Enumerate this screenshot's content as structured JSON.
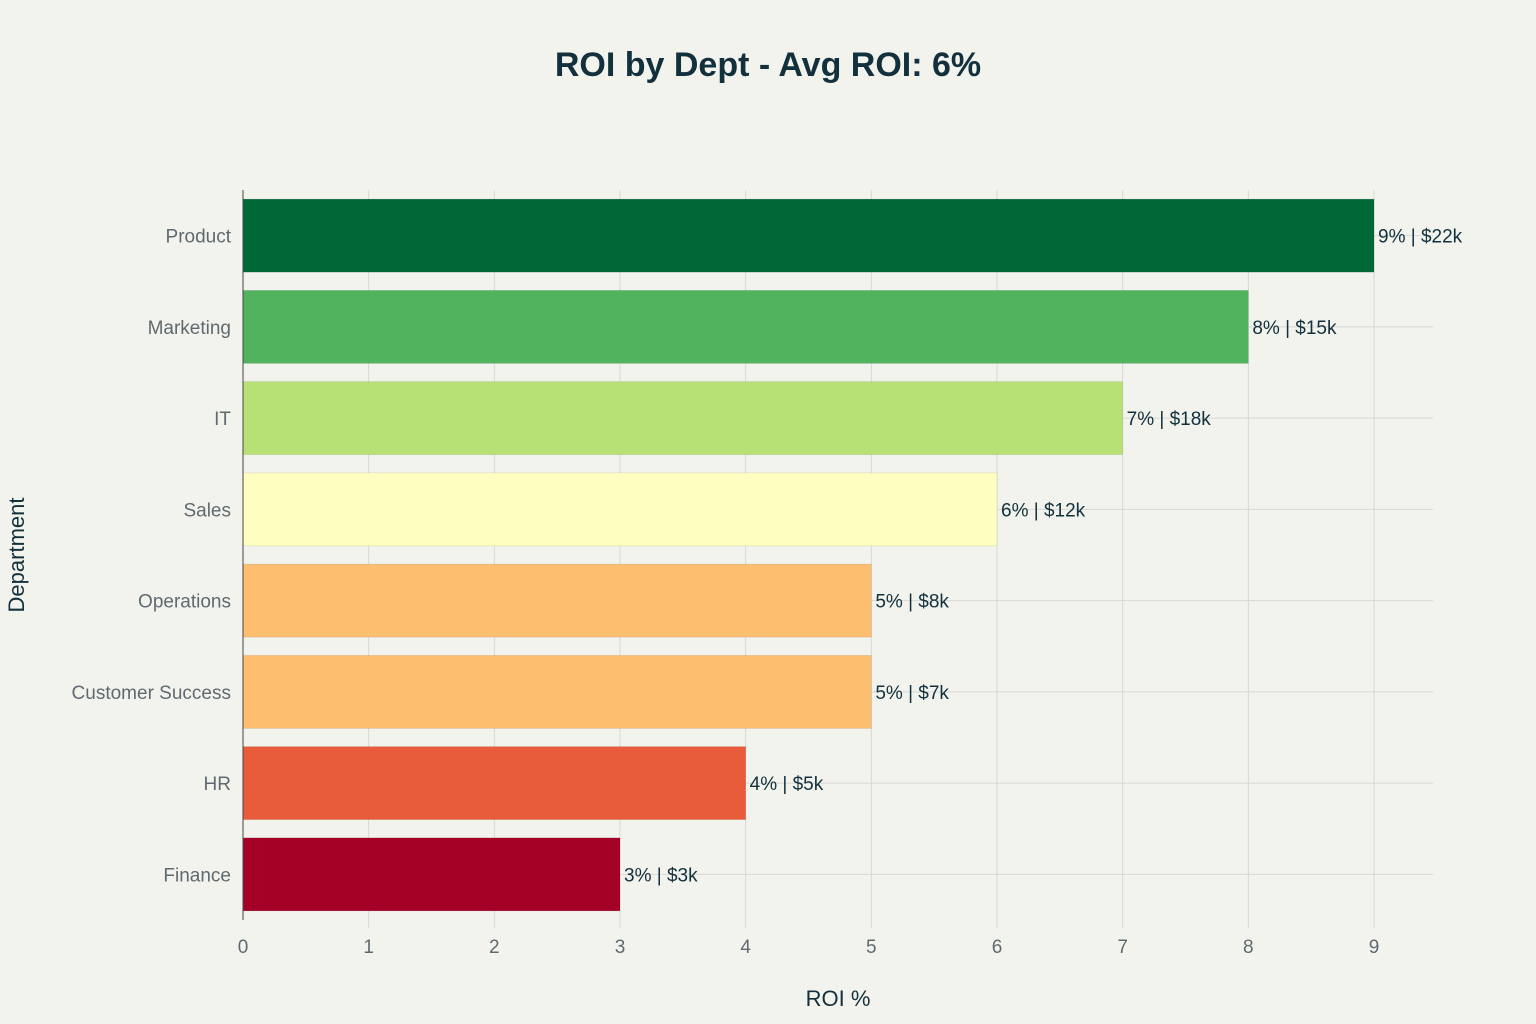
{
  "chart_data": {
    "type": "bar",
    "orientation": "horizontal",
    "title": "ROI by Dept - Avg ROI: 6%",
    "xlabel": "ROI %",
    "ylabel": "Department",
    "xlim": [
      0,
      9.47
    ],
    "xticks": [
      "0",
      "1",
      "2",
      "3",
      "4",
      "5",
      "6",
      "7",
      "8",
      "9"
    ],
    "grid": true,
    "legend": "none",
    "categories": [
      "Product",
      "Marketing",
      "IT",
      "Sales",
      "Operations",
      "Customer Success",
      "HR",
      "Finance"
    ],
    "values": [
      9,
      8,
      7,
      6,
      5,
      5,
      4,
      3
    ],
    "labels": [
      "9% | $22k",
      "8% | $15k",
      "7% | $18k",
      "6% | $12k",
      "5% | $8k",
      "5% | $7k",
      "4% | $5k",
      "3% | $3k"
    ],
    "colors": [
      "#006837",
      "#52b35e",
      "#b7e175",
      "#fefec0",
      "#fdbe70",
      "#fdbe70",
      "#e95c3b",
      "#a50026"
    ]
  }
}
